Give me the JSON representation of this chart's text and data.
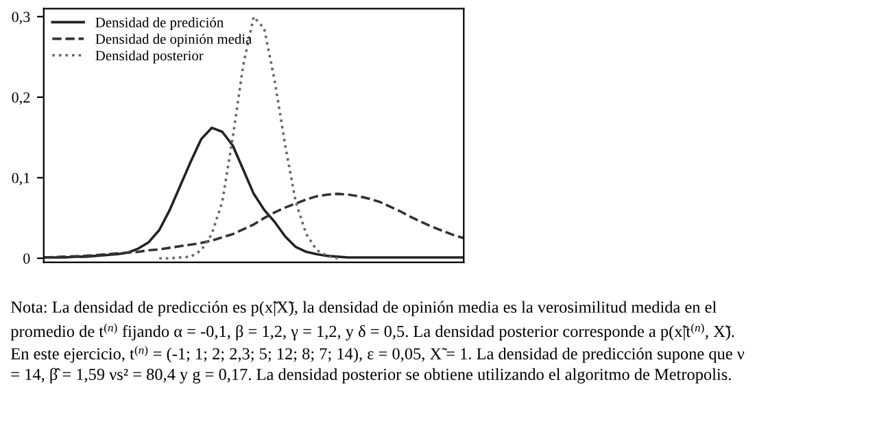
{
  "chart_data": {
    "type": "line",
    "categories": [
      null,
      null,
      null,
      null,
      null,
      null,
      null,
      null,
      null,
      null,
      null,
      null,
      null,
      null,
      null,
      null,
      null,
      null,
      null,
      null,
      null,
      null,
      null,
      null,
      null,
      null,
      null,
      null,
      null,
      null,
      null,
      null,
      null,
      null,
      null,
      null,
      null,
      null,
      null,
      null,
      null
    ],
    "ylim": [
      -0.005,
      0.31
    ],
    "yticks": [
      {
        "value": 0,
        "label": "0"
      },
      {
        "value": 0.1,
        "label": "0,1"
      },
      {
        "value": 0.2,
        "label": "0,2"
      },
      {
        "value": 0.3,
        "label": "0,3"
      }
    ],
    "grid": false,
    "legend": "top left",
    "series": [
      {
        "name": "Densidad de predición",
        "color": "#222222",
        "line_style": "solid",
        "values": [
          0.001,
          0.001,
          0.001,
          0.002,
          0.002,
          0.003,
          0.004,
          0.005,
          0.007,
          0.012,
          0.02,
          0.035,
          0.06,
          0.09,
          0.12,
          0.148,
          0.162,
          0.157,
          0.14,
          0.11,
          0.08,
          0.06,
          0.045,
          0.027,
          0.014,
          0.008,
          0.005,
          0.003,
          0.002,
          0.001,
          0.001,
          0.001,
          0.001,
          0.001,
          0.001,
          0.001,
          0.001,
          0.001,
          0.001,
          0.001,
          0.001
        ]
      },
      {
        "name": "Densidad de opinión media",
        "color": "#333333",
        "line_style": "dashed",
        "values": [
          0.001,
          0.0015,
          0.002,
          0.0025,
          0.003,
          0.004,
          0.005,
          0.006,
          0.007,
          0.008,
          0.01,
          0.011,
          0.013,
          0.015,
          0.017,
          0.019,
          0.022,
          0.026,
          0.03,
          0.036,
          0.042,
          0.05,
          0.057,
          0.063,
          0.068,
          0.073,
          0.077,
          0.079,
          0.08,
          0.079,
          0.077,
          0.074,
          0.07,
          0.064,
          0.058,
          0.051,
          0.045,
          0.039,
          0.034,
          0.029,
          0.025
        ]
      },
      {
        "name": "Densidad posterior",
        "color": "#666666",
        "line_style": "dotted",
        "values": [
          null,
          null,
          null,
          null,
          null,
          null,
          null,
          null,
          null,
          null,
          null,
          0,
          0,
          0.001,
          0.002,
          0.01,
          0.03,
          0.07,
          0.15,
          0.24,
          0.3,
          0.285,
          0.22,
          0.14,
          0.07,
          0.03,
          0.01,
          0.003,
          0,
          null,
          null,
          null,
          null,
          null,
          null,
          null,
          null,
          null,
          null,
          null,
          null
        ]
      }
    ],
    "annotations": [
      "Nota: La densidad de predicción es p(x̃|X̃), la densidad de opinión media es la verosimilitud medida en el",
      "promedio de t$^{(n)}$ fijando α = -0,1, β = 1,2, γ = 1,2, y δ = 0,5. La densidad posterior corresponde a p(x̃|t$^{(n)}$, X̃).",
      "En este ejercicio, t$^{(n)}$ = (-1; 1; 2; 2,3; 5; 12; 8; 7; 14), ε = 0,05, X̃ = 1. La densidad de predicción supone que ν",
      "= 14, β̂ = 1,59 νs² = 80,4 y g = 0,17. La densidad posterior se obtiene utilizando el algoritmo de Metropolis."
    ]
  }
}
